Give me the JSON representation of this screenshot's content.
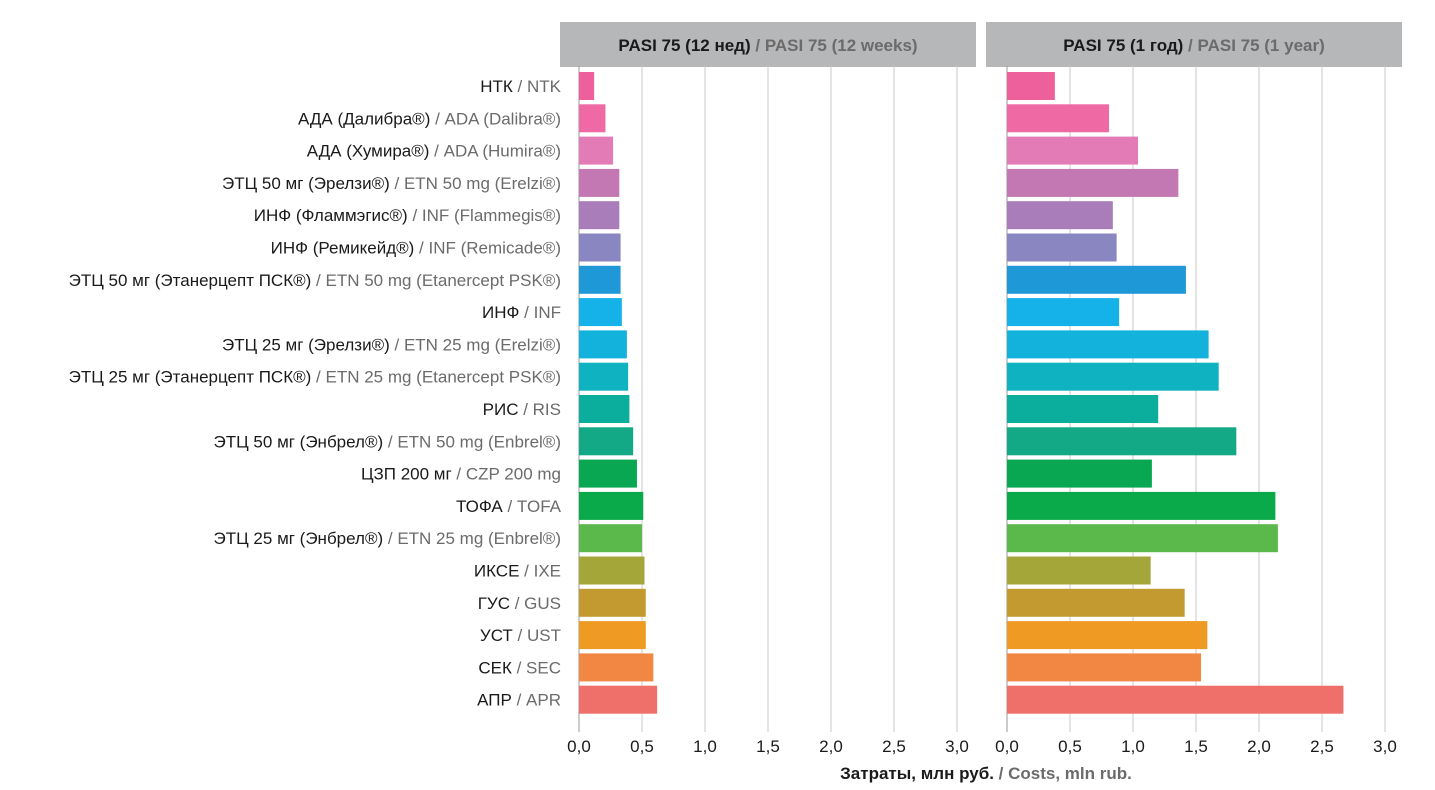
{
  "chart_data": {
    "type": "bar",
    "orientation": "horizontal",
    "categories": [
      {
        "ru": "НТК",
        "en": "NTK"
      },
      {
        "ru": "АДА (Далибра®)",
        "en": "ADA (Dalibra®)"
      },
      {
        "ru": "АДА (Хумира®)",
        "en": "ADA (Humira®)"
      },
      {
        "ru": "ЭТЦ 50 мг (Эрелзи®)",
        "en": "ETN 50 mg (Erelzi®)"
      },
      {
        "ru": "ИНФ (Фламмэгис®)",
        "en": "INF (Flammegis®)"
      },
      {
        "ru": "ИНФ (Ремикейд®)",
        "en": "INF (Remicade®)"
      },
      {
        "ru": "ЭТЦ 50 мг (Этанерцепт ПСК®)",
        "en": "ETN 50 mg (Etanercept PSK®)"
      },
      {
        "ru": "ИНФ",
        "en": "INF"
      },
      {
        "ru": "ЭТЦ 25 мг (Эрелзи®)",
        "en": "ETN 25 mg (Erelzi®)"
      },
      {
        "ru": "ЭТЦ 25 мг (Этанерцепт ПСК®)",
        "en": "ETN 25 mg (Etanercept PSK®)"
      },
      {
        "ru": "РИС",
        "en": "RIS"
      },
      {
        "ru": "ЭТЦ 50 мг (Энбрел®)",
        "en": "ETN 50 mg (Enbrel®)"
      },
      {
        "ru": "ЦЗП 200 мг",
        "en": "CZP 200 mg"
      },
      {
        "ru": "ТОФА",
        "en": "TOFA"
      },
      {
        "ru": "ЭТЦ 25 мг (Энбрел®)",
        "en": "ETN 25 mg (Enbrel®)"
      },
      {
        "ru": "ИКСЕ",
        "en": "IXE"
      },
      {
        "ru": "ГУС",
        "en": "GUS"
      },
      {
        "ru": "УСТ",
        "en": "UST"
      },
      {
        "ru": "СЕК",
        "en": "SEC"
      },
      {
        "ru": "АПР",
        "en": "APR"
      }
    ],
    "colors": [
      "#ee609c",
      "#ef6aa4",
      "#e27bb6",
      "#c377b3",
      "#a97db9",
      "#8a86c2",
      "#1e98d6",
      "#15b2ea",
      "#12b2dd",
      "#0fb2c0",
      "#0bad9c",
      "#13a886",
      "#0aa752",
      "#0aaa4a",
      "#5bb84a",
      "#a4a63a",
      "#c39a2f",
      "#ef9a23",
      "#f28643",
      "#ef6f6a"
    ],
    "separator": "/",
    "xlabel": {
      "ru": "Затраты, млн руб.",
      "en": "Costs, mln rub."
    },
    "panels": [
      {
        "title": {
          "ru": "PASI 75 (12 нед)",
          "en": "PASI 75 (12 weeks)"
        },
        "xlim": [
          0,
          3.0
        ],
        "ticks": [
          "0,0",
          "0,5",
          "1,0",
          "1,5",
          "2,0",
          "2,5",
          "3,0"
        ],
        "values": [
          0.12,
          0.21,
          0.27,
          0.32,
          0.32,
          0.33,
          0.33,
          0.34,
          0.38,
          0.39,
          0.4,
          0.43,
          0.46,
          0.51,
          0.5,
          0.52,
          0.53,
          0.53,
          0.59,
          0.62
        ]
      },
      {
        "title": {
          "ru": "PASI 75 (1 год)",
          "en": "PASI 75 (1 year)"
        },
        "xlim": [
          0,
          3.0
        ],
        "ticks": [
          "0,0",
          "0,5",
          "1,0",
          "1,5",
          "2,0",
          "2,5",
          "3,0"
        ],
        "values": [
          0.38,
          0.81,
          1.04,
          1.36,
          0.84,
          0.87,
          1.42,
          0.89,
          1.6,
          1.68,
          1.2,
          1.82,
          1.15,
          2.13,
          2.15,
          1.14,
          1.41,
          1.59,
          1.54,
          2.67
        ]
      }
    ],
    "grid": "vertical",
    "header_color": "#b6b7b9"
  }
}
